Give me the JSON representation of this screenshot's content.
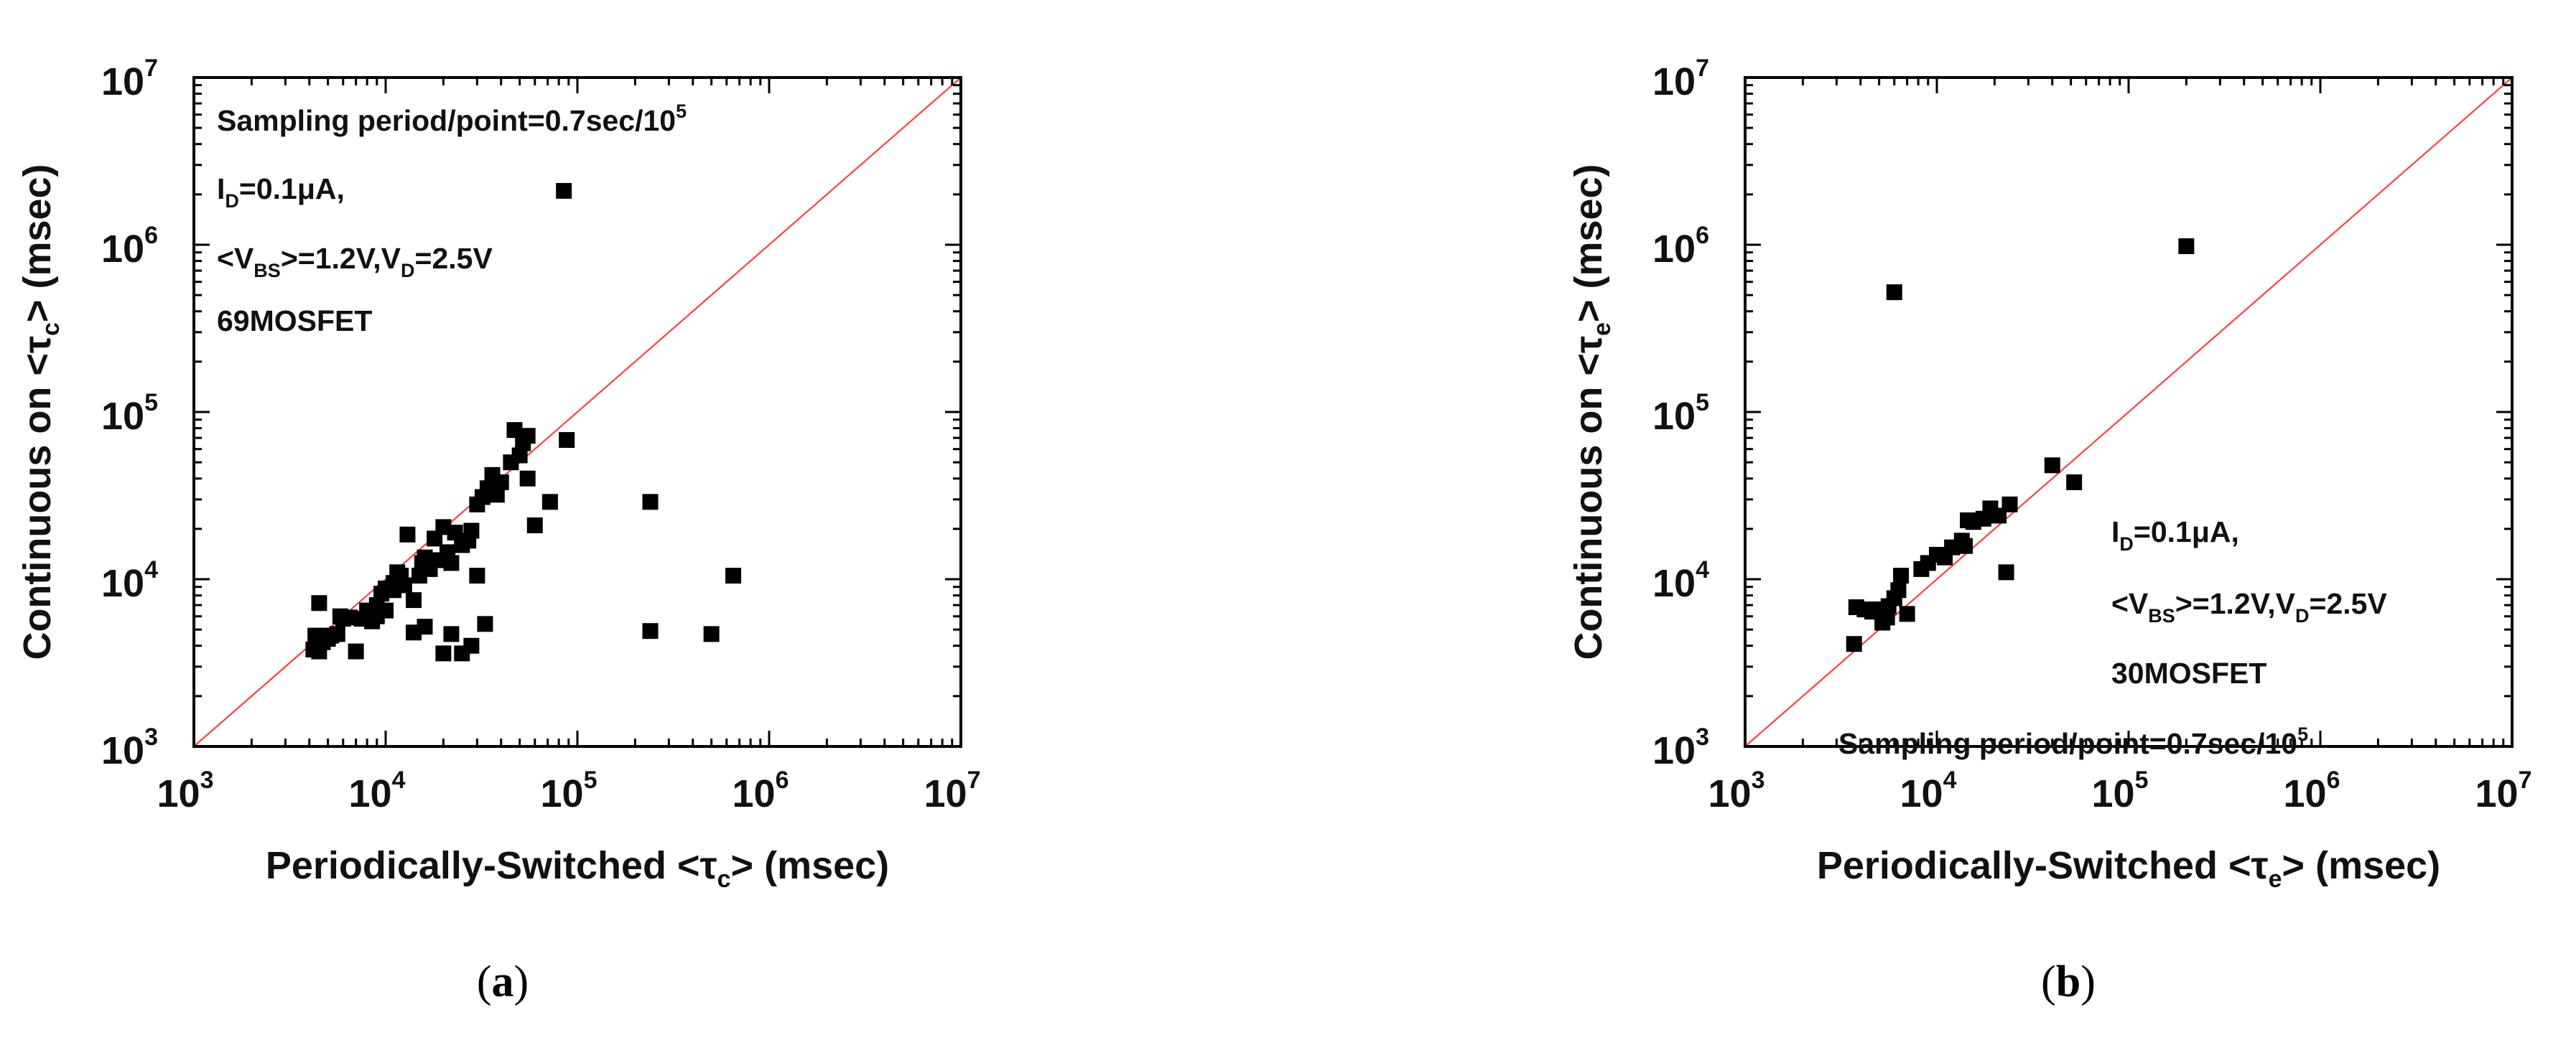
{
  "chart_data": [
    {
      "type": "scatter",
      "panel": "a",
      "caption": {
        "open": "(",
        "letter": "a",
        "close": ")"
      },
      "xlabel": {
        "pre": "Periodically-Switched <τ",
        "sub": "c",
        "post": "> (msec)"
      },
      "ylabel": {
        "pre": "Continuous on <τ",
        "sub": "c",
        "post": "> (msec)"
      },
      "xscale": "log",
      "yscale": "log",
      "xlim": [
        1000,
        10000000
      ],
      "ylim": [
        1000,
        10000000
      ],
      "ticks": [
        {
          "base": "10",
          "exp": "3",
          "value": 1000
        },
        {
          "base": "10",
          "exp": "4",
          "value": 10000
        },
        {
          "base": "10",
          "exp": "5",
          "value": 100000
        },
        {
          "base": "10",
          "exp": "6",
          "value": 1000000
        },
        {
          "base": "10",
          "exp": "7",
          "value": 10000000
        }
      ],
      "reference_line": {
        "type": "y=x",
        "color": "#ff4040"
      },
      "annotations": [
        {
          "segments": [
            {
              "t": "Sampling period/point=0.7sec/10"
            },
            {
              "t": "5",
              "sup": true
            }
          ]
        },
        {
          "segments": [
            {
              "t": "I"
            },
            {
              "t": "D",
              "sub": true
            },
            {
              "t": "=0.1μA,"
            }
          ]
        },
        {
          "segments": [
            {
              "t": "<V"
            },
            {
              "t": "BS",
              "sub": true
            },
            {
              "t": ">=1.2V,V"
            },
            {
              "t": "D",
              "sub": true
            },
            {
              "t": "=2.5V"
            }
          ]
        },
        {
          "segments": [
            {
              "t": "69MOSFET"
            }
          ]
        }
      ],
      "points": [
        [
          4200,
          3800
        ],
        [
          4400,
          4000
        ],
        [
          4500,
          3700
        ],
        [
          4700,
          4200
        ],
        [
          5000,
          4400
        ],
        [
          5200,
          4600
        ],
        [
          5600,
          4700
        ],
        [
          4300,
          4600
        ],
        [
          4500,
          7200
        ],
        [
          5800,
          6000
        ],
        [
          6000,
          5800
        ],
        [
          7000,
          3700
        ],
        [
          7500,
          5800
        ],
        [
          8000,
          6500
        ],
        [
          8500,
          5600
        ],
        [
          9000,
          7000
        ],
        [
          9500,
          8200
        ],
        [
          10000,
          8800
        ],
        [
          11000,
          9500
        ],
        [
          11500,
          11000
        ],
        [
          12000,
          10500
        ],
        [
          13000,
          18500
        ],
        [
          14000,
          7500
        ],
        [
          15000,
          10500
        ],
        [
          15500,
          12500
        ],
        [
          16000,
          13500
        ],
        [
          17000,
          11500
        ],
        [
          18000,
          17500
        ],
        [
          19000,
          13000
        ],
        [
          20000,
          20500
        ],
        [
          21000,
          14500
        ],
        [
          22000,
          12500
        ],
        [
          23000,
          19000
        ],
        [
          25000,
          16000
        ],
        [
          27000,
          17000
        ],
        [
          28000,
          19500
        ],
        [
          30000,
          28000
        ],
        [
          32000,
          31000
        ],
        [
          34000,
          35000
        ],
        [
          36000,
          42000
        ],
        [
          40000,
          38000
        ],
        [
          45000,
          50000
        ],
        [
          47000,
          78000
        ],
        [
          50000,
          55000
        ],
        [
          52000,
          65000
        ],
        [
          55000,
          72000
        ],
        [
          55000,
          40000
        ],
        [
          60000,
          21000
        ],
        [
          72000,
          29000
        ],
        [
          88000,
          68000
        ],
        [
          30000,
          10500
        ],
        [
          14000,
          4800
        ],
        [
          16000,
          5200
        ],
        [
          20000,
          3600
        ],
        [
          22000,
          4700
        ],
        [
          25000,
          3600
        ],
        [
          28000,
          4000
        ],
        [
          33000,
          5400
        ],
        [
          10000,
          6500
        ],
        [
          9000,
          6000
        ],
        [
          6500,
          5900
        ],
        [
          11000,
          8600
        ],
        [
          12500,
          9200
        ],
        [
          85000,
          2100000
        ],
        [
          240000,
          29000
        ],
        [
          240000,
          4900
        ],
        [
          500000,
          4700
        ],
        [
          650000,
          10500
        ],
        [
          38000,
          32000
        ]
      ]
    },
    {
      "type": "scatter",
      "panel": "b",
      "caption": {
        "open": "(",
        "letter": "b",
        "close": ")"
      },
      "xlabel": {
        "pre": "Periodically-Switched <τ",
        "sub": "e",
        "post": "> (msec)"
      },
      "ylabel": {
        "pre": "Continuous on <τ",
        "sub": "e",
        "post": "> (msec)"
      },
      "xscale": "log",
      "yscale": "log",
      "xlim": [
        1000,
        10000000
      ],
      "ylim": [
        1000,
        10000000
      ],
      "ticks": [
        {
          "base": "10",
          "exp": "3",
          "value": 1000
        },
        {
          "base": "10",
          "exp": "4",
          "value": 10000
        },
        {
          "base": "10",
          "exp": "5",
          "value": 100000
        },
        {
          "base": "10",
          "exp": "6",
          "value": 1000000
        },
        {
          "base": "10",
          "exp": "7",
          "value": 10000000
        }
      ],
      "reference_line": {
        "type": "y=x",
        "color": "#ff4040"
      },
      "annotations": [
        {
          "segments": [
            {
              "t": "I"
            },
            {
              "t": "D",
              "sub": true
            },
            {
              "t": "=0.1μA,"
            }
          ]
        },
        {
          "segments": [
            {
              "t": "<V"
            },
            {
              "t": "BS",
              "sub": true
            },
            {
              "t": ">=1.2V,V"
            },
            {
              "t": "D",
              "sub": true
            },
            {
              "t": "=2.5V"
            }
          ]
        },
        {
          "segments": [
            {
              "t": "30MOSFET"
            }
          ]
        },
        {
          "segments": [
            {
              "t": "Sampling period/point=0.7sec/10"
            },
            {
              "t": "5",
              "sup": true
            }
          ]
        }
      ],
      "points": [
        [
          3700,
          4100
        ],
        [
          3800,
          6800
        ],
        [
          4200,
          6600
        ],
        [
          4600,
          6400
        ],
        [
          5000,
          6600
        ],
        [
          5200,
          5500
        ],
        [
          5500,
          5900
        ],
        [
          5600,
          6900
        ],
        [
          6000,
          7700
        ],
        [
          6300,
          8600
        ],
        [
          6500,
          10500
        ],
        [
          7000,
          6200
        ],
        [
          8300,
          11500
        ],
        [
          9000,
          12500
        ],
        [
          10000,
          14000
        ],
        [
          11000,
          13500
        ],
        [
          12000,
          15500
        ],
        [
          13500,
          17000
        ],
        [
          14500,
          22500
        ],
        [
          15500,
          22000
        ],
        [
          17500,
          23000
        ],
        [
          19000,
          26500
        ],
        [
          21000,
          24000
        ],
        [
          23000,
          11000
        ],
        [
          24000,
          28000
        ],
        [
          40000,
          48000
        ],
        [
          52000,
          38000
        ],
        [
          6000,
          520000
        ],
        [
          200000,
          980000
        ],
        [
          14000,
          15800
        ]
      ]
    }
  ]
}
